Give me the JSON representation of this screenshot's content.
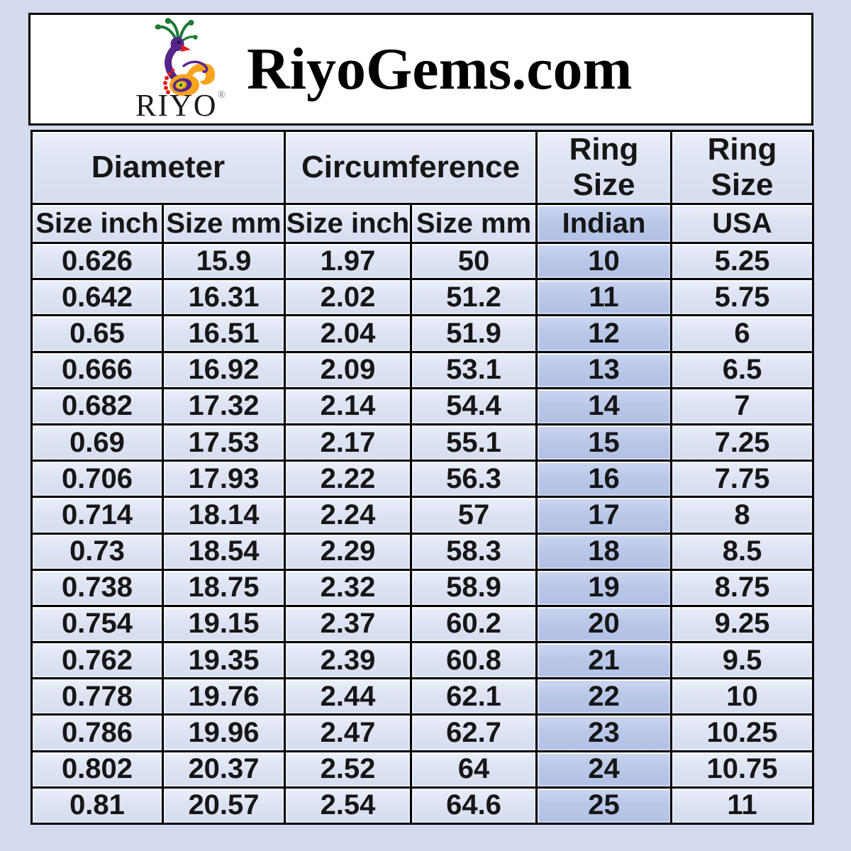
{
  "header": {
    "site_title": "RiyoGems.com",
    "logo_text": "RIYO",
    "registered_mark": "®"
  },
  "table": {
    "group_headers": [
      {
        "label": "Diameter"
      },
      {
        "label": "Circumference"
      },
      {
        "label": "Ring Size"
      },
      {
        "label": "Ring Size"
      }
    ],
    "sub_headers": [
      "Size inch",
      "Size mm",
      "Size inch",
      "Size mm",
      "Indian",
      "USA"
    ],
    "column_keys": [
      "diameter-size-inch",
      "diameter-size-mm",
      "circumference-size-inch",
      "circumference-size-mm",
      "ring-size-indian",
      "ring-size-usa"
    ],
    "highlight_column_index": 4
  },
  "colors": {
    "page_bg": "#d5dbee",
    "header_box_bg": "#ffffff",
    "cell_bg": "#dde3f3",
    "indian_column_bg": "#bac8e8",
    "grid_border": "#000000",
    "text": "#161616",
    "logo_purple": "#55258b",
    "logo_green": "#1e7a34",
    "logo_orange": "#f6a31d",
    "logo_red": "#e01e1e",
    "logo_yellow_green": "#c6d929"
  },
  "chart_data": {
    "type": "table",
    "title": "RiyoGems.com",
    "columns": [
      "Diameter Size inch",
      "Diameter Size mm",
      "Circumference Size inch",
      "Circumference Size mm",
      "Ring Size Indian",
      "Ring Size USA"
    ],
    "rows": [
      [
        "0.626",
        "15.9",
        "1.97",
        "50",
        "10",
        "5.25"
      ],
      [
        "0.642",
        "16.31",
        "2.02",
        "51.2",
        "11",
        "5.75"
      ],
      [
        "0.65",
        "16.51",
        "2.04",
        "51.9",
        "12",
        "6"
      ],
      [
        "0.666",
        "16.92",
        "2.09",
        "53.1",
        "13",
        "6.5"
      ],
      [
        "0.682",
        "17.32",
        "2.14",
        "54.4",
        "14",
        "7"
      ],
      [
        "0.69",
        "17.53",
        "2.17",
        "55.1",
        "15",
        "7.25"
      ],
      [
        "0.706",
        "17.93",
        "2.22",
        "56.3",
        "16",
        "7.75"
      ],
      [
        "0.714",
        "18.14",
        "2.24",
        "57",
        "17",
        "8"
      ],
      [
        "0.73",
        "18.54",
        "2.29",
        "58.3",
        "18",
        "8.5"
      ],
      [
        "0.738",
        "18.75",
        "2.32",
        "58.9",
        "19",
        "8.75"
      ],
      [
        "0.754",
        "19.15",
        "2.37",
        "60.2",
        "20",
        "9.25"
      ],
      [
        "0.762",
        "19.35",
        "2.39",
        "60.8",
        "21",
        "9.5"
      ],
      [
        "0.778",
        "19.76",
        "2.44",
        "62.1",
        "22",
        "10"
      ],
      [
        "0.786",
        "19.96",
        "2.47",
        "62.7",
        "23",
        "10.25"
      ],
      [
        "0.802",
        "20.37",
        "2.52",
        "64",
        "24",
        "10.75"
      ],
      [
        "0.81",
        "20.57",
        "2.54",
        "64.6",
        "25",
        "11"
      ]
    ]
  }
}
